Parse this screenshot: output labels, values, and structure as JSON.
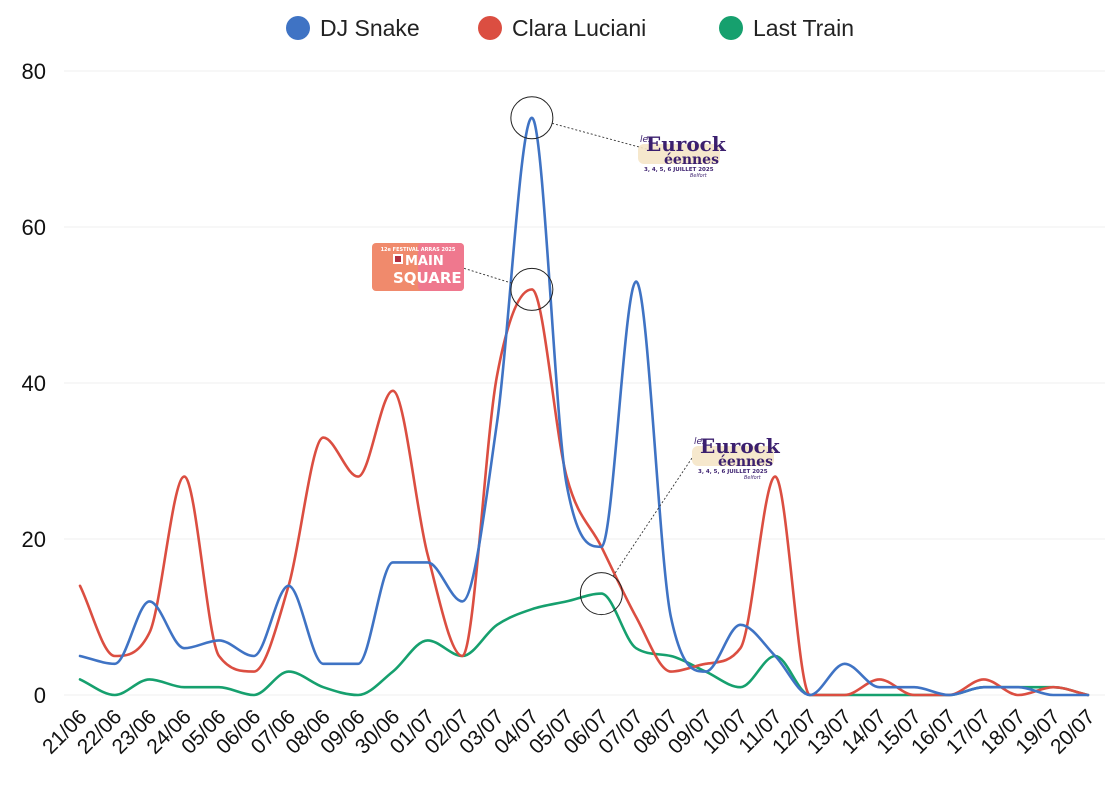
{
  "chart_data": {
    "type": "line",
    "title": "",
    "xlabel": "",
    "ylabel": "",
    "ylim": [
      0,
      80
    ],
    "yticks": [
      0,
      20,
      40,
      60,
      80
    ],
    "grid": true,
    "legend_position": "top-center",
    "categories": [
      "21/06",
      "22/06",
      "23/06",
      "24/06",
      "05/06",
      "06/06",
      "07/06",
      "08/06",
      "09/06",
      "30/06",
      "01/07",
      "02/07",
      "03/07",
      "04/07",
      "05/07",
      "06/07",
      "07/07",
      "08/07",
      "09/07",
      "10/07",
      "11/07",
      "12/07",
      "13/07",
      "14/07",
      "15/07",
      "16/07",
      "17/07",
      "18/07",
      "19/07",
      "20/07"
    ],
    "series": [
      {
        "name": "DJ Snake",
        "color": "#3f73c4",
        "values": [
          5,
          4,
          12,
          6,
          7,
          5,
          14,
          4,
          4,
          17,
          17,
          12,
          35,
          74,
          27,
          19,
          53,
          10,
          3,
          9,
          5,
          0,
          4,
          1,
          1,
          0,
          1,
          1,
          0,
          0
        ]
      },
      {
        "name": "Clara Luciani",
        "color": "#db4e41",
        "values": [
          14,
          5,
          8,
          28,
          5,
          3,
          14,
          33,
          28,
          39,
          18,
          5,
          41,
          52,
          28,
          19,
          10,
          3,
          4,
          6,
          28,
          0,
          0,
          2,
          0,
          0,
          2,
          0,
          1,
          0
        ]
      },
      {
        "name": "Last Train",
        "color": "#16a06e",
        "values": [
          2,
          0,
          2,
          1,
          1,
          0,
          3,
          1,
          0,
          3,
          7,
          5,
          9,
          11,
          12,
          13,
          6,
          5,
          3,
          1,
          5,
          0,
          0,
          0,
          0,
          0,
          1,
          1,
          1,
          0
        ]
      }
    ],
    "annotations": [
      {
        "series": "Clara Luciani",
        "category": "04/07",
        "value": 52,
        "logo": "main-square",
        "logo_text": {
          "top": "12e FESTIVAL ARRAS 2025",
          "line1": "MAIN",
          "line2": "SQUARE"
        }
      },
      {
        "series": "DJ Snake",
        "category": "04/07",
        "value": 74,
        "logo": "eurockeennes",
        "logo_text": {
          "les": "les",
          "line1": "Eurock",
          "line2": "éennes",
          "dates": "3, 4, 5, 6 JUILLET 2025",
          "place": "Belfort"
        }
      },
      {
        "series": "Last Train",
        "category": "06/07",
        "value": 13,
        "logo": "eurockeennes",
        "logo_text": {
          "les": "les",
          "line1": "Eurock",
          "line2": "éennes",
          "dates": "3, 4, 5, 6 JUILLET 2025",
          "place": "Belfort"
        }
      }
    ]
  }
}
